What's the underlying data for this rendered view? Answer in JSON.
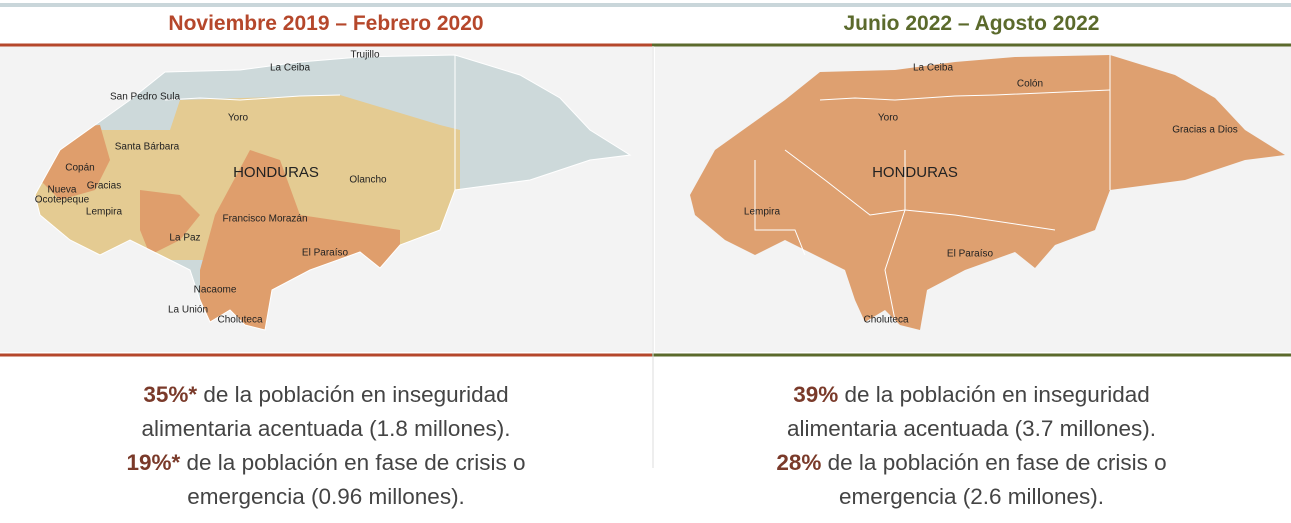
{
  "panels": [
    {
      "title": "Noviembre 2019 – Febrero 2020",
      "map_labels": [
        "Trujillo",
        "La Ceiba",
        "San Pedro Sula",
        "Yoro",
        "Santa Bárbara",
        "HONDURAS",
        "Olancho",
        "Copán",
        "Gracias",
        "Nueva",
        "Ocotepeque",
        "Lempira",
        "Francisco Morazán",
        "La Paz",
        "El Paraíso",
        "Nacaome",
        "La Unión",
        "Choluteca"
      ],
      "summary": [
        {
          "bold": "35%*",
          "line1": " de la población en inseguridad",
          "line2": "alimentaria acentuada (1.8 millones)."
        },
        {
          "bold": "19%*",
          "line1": " de la población en fase de crisis o",
          "line2": "emergencia (0.96 millones)."
        }
      ]
    },
    {
      "title": "Junio 2022 – Agosto 2022",
      "map_labels": [
        "La Ceiba",
        "Colón",
        "Yoro",
        "Gracias a Dios",
        "HONDURAS",
        "Lempira",
        "El Paraíso",
        "Choluteca"
      ],
      "summary": [
        {
          "bold": "39%",
          "line1": " de la población en inseguridad",
          "line2": "alimentaria acentuada (3.7 millones)."
        },
        {
          "bold": "28%",
          "line1": " de la población en fase de crisis o",
          "line2": "emergencia (2.6 millones)."
        }
      ]
    }
  ]
}
